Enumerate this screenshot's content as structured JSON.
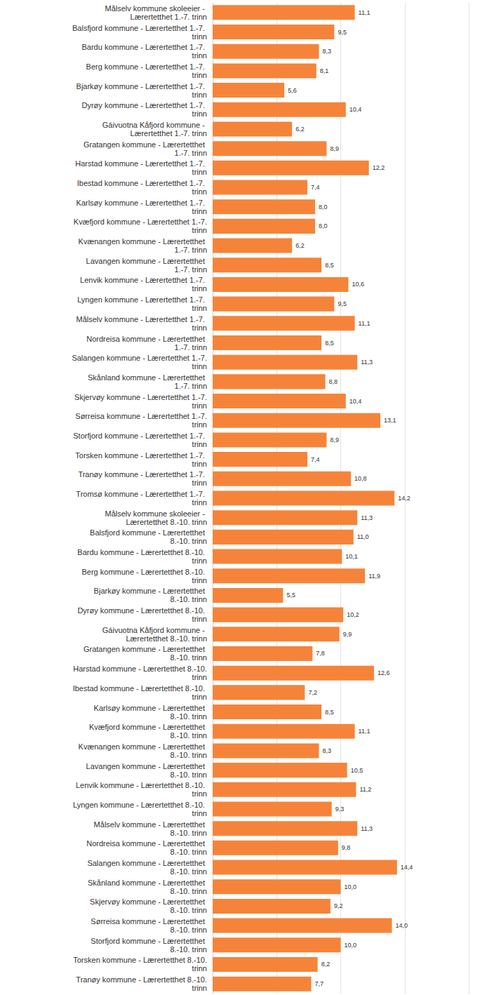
{
  "chart_data": {
    "type": "bar",
    "orientation": "horizontal",
    "color": "#f5843a",
    "grid": true,
    "data_labels": true,
    "tick_labels": "y",
    "xlim": [
      0,
      20
    ],
    "xticks": [
      0,
      5,
      10,
      15,
      20
    ],
    "categories": [
      "Målselv kommune skoleeier - Lærertetthet 1.-7. trinn",
      "Balsfjord kommune - Lærertetthet 1.-7. trinn",
      "Bardu kommune - Lærertetthet 1.-7. trinn",
      "Berg kommune - Lærertetthet 1.-7. trinn",
      "Bjarkøy kommune - Lærertetthet 1.-7. trinn",
      "Dyrøy kommune - Lærertetthet 1.-7. trinn",
      "Gáivuotna Kåfjord kommune - Lærertetthet 1.-7. trinn",
      "Gratangen kommune - Lærertetthet 1.-7. trinn",
      "Harstad kommune - Lærertetthet 1.-7. trinn",
      "Ibestad kommune - Lærertetthet 1.-7. trinn",
      "Karlsøy kommune - Lærertetthet 1.-7. trinn",
      "Kvæfjord kommune - Lærertetthet 1.-7. trinn",
      "Kvænangen kommune - Lærertetthet 1.-7. trinn",
      "Lavangen kommune - Lærertetthet 1.-7. trinn",
      "Lenvik kommune - Lærertetthet 1.-7. trinn",
      "Lyngen kommune - Lærertetthet 1.-7. trinn",
      "Målselv kommune - Lærertetthet 1.-7. trinn",
      "Nordreisa kommune - Lærertetthet 1.-7. trinn",
      "Salangen kommune - Lærertetthet 1.-7. trinn",
      "Skånland kommune - Lærertetthet 1.-7. trinn",
      "Skjervøy kommune - Lærertetthet 1.-7. trinn",
      "Sørreisa kommune - Lærertetthet 1.-7. trinn",
      "Storfjord kommune - Lærertetthet 1.-7. trinn",
      "Torsken kommune - Lærertetthet 1.-7. trinn",
      "Tranøy kommune - Lærertetthet 1.-7. trinn",
      "Tromsø kommune - Lærertetthet 1.-7. trinn",
      "Målselv kommune skoleeier - Lærertetthet 8.-10. trinn",
      "Balsfjord kommune - Lærertetthet 8.-10. trinn",
      "Bardu kommune - Lærertetthet 8.-10. trinn",
      "Berg kommune - Lærertetthet 8.-10. trinn",
      "Bjarkøy kommune - Lærertetthet 8.-10. trinn",
      "Dyrøy kommune - Lærertetthet 8.-10. trinn",
      "Gáivuotna Kåfjord kommune - Lærertetthet 8.-10. trinn",
      "Gratangen kommune - Lærertetthet 8.-10. trinn",
      "Harstad kommune - Lærertetthet 8.-10. trinn",
      "Ibestad kommune - Lærertetthet 8.-10. trinn",
      "Karlsøy kommune - Lærertetthet 8.-10. trinn",
      "Kvæfjord kommune - Lærertetthet 8.-10. trinn",
      "Kvænangen kommune - Lærertetthet 8.-10. trinn",
      "Lavangen kommune - Lærertetthet 8.-10. trinn",
      "Lenvik kommune - Lærertetthet 8.-10. trinn",
      "Lyngen kommune - Lærertetthet 8.-10. trinn",
      "Målselv kommune - Lærertetthet 8.-10. trinn",
      "Nordreisa kommune - Lærertetthet 8.-10. trinn",
      "Salangen kommune - Lærertetthet 8.-10. trinn",
      "Skånland kommune - Lærertetthet 8.-10. trinn",
      "Skjervøy kommune - Lærertetthet 8.-10. trinn",
      "Sørreisa kommune - Lærertetthet 8.-10. trinn",
      "Storfjord kommune - Lærertetthet 8.-10. trinn",
      "Torsken kommune - Lærertetthet 8.-10. trinn",
      "Tranøy kommune - Lærertetthet 8.-10. trinn"
    ],
    "values": [
      11.1,
      9.5,
      8.3,
      8.1,
      5.6,
      10.4,
      6.2,
      8.9,
      12.2,
      7.4,
      8.0,
      8.0,
      6.2,
      8.5,
      10.6,
      9.5,
      11.1,
      8.5,
      11.3,
      8.8,
      10.4,
      13.1,
      8.9,
      7.4,
      10.8,
      14.2,
      11.3,
      11.0,
      10.1,
      11.9,
      5.5,
      10.2,
      9.9,
      7.8,
      12.6,
      7.2,
      8.5,
      11.1,
      8.3,
      10.5,
      11.2,
      9.3,
      11.3,
      9.8,
      14.4,
      10.0,
      9.2,
      14.0,
      10.0,
      8.2,
      7.7
    ],
    "value_labels": [
      "11,1",
      "9,5",
      "8,3",
      "8,1",
      "5,6",
      "10,4",
      "6,2",
      "8,9",
      "12,2",
      "7,4",
      "8,0",
      "8,0",
      "6,2",
      "8,5",
      "10,6",
      "9,5",
      "11,1",
      "8,5",
      "11,3",
      "8,8",
      "10,4",
      "13,1",
      "8,9",
      "7,4",
      "10,8",
      "14,2",
      "11,3",
      "11,0",
      "10,1",
      "11,9",
      "5,5",
      "10,2",
      "9,9",
      "7,8",
      "12,6",
      "7,2",
      "8,5",
      "11,1",
      "8,3",
      "10,5",
      "11,2",
      "9,3",
      "11,3",
      "9,8",
      "14,4",
      "10,0",
      "9,2",
      "14,0",
      "10,0",
      "8,2",
      "7,7"
    ]
  }
}
